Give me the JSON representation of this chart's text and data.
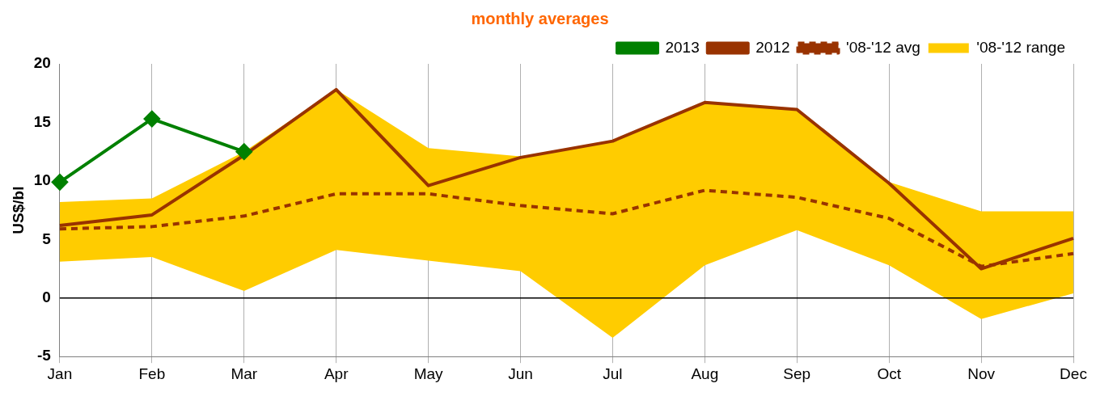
{
  "chart_data": {
    "type": "line",
    "title": "monthly averages",
    "ylabel": "US$/bl",
    "categories": [
      "Jan",
      "Feb",
      "Mar",
      "Apr",
      "May",
      "Jun",
      "Jul",
      "Aug",
      "Sep",
      "Oct",
      "Nov",
      "Dec"
    ],
    "series": [
      {
        "name": "2013",
        "type": "line",
        "color": "#008000",
        "marker": "diamond",
        "line_style": "solid",
        "values": [
          9.9,
          15.3,
          12.5,
          null,
          null,
          null,
          null,
          null,
          null,
          null,
          null,
          null
        ]
      },
      {
        "name": "2012",
        "type": "line",
        "color": "#993300",
        "marker": "none",
        "line_style": "solid",
        "values": [
          6.2,
          7.1,
          12.2,
          17.8,
          9.6,
          12.0,
          13.4,
          16.7,
          16.1,
          9.8,
          2.5,
          5.1
        ]
      },
      {
        "name": "'08-'12 avg",
        "type": "line",
        "color": "#993300",
        "marker": "none",
        "line_style": "dashed",
        "values": [
          5.9,
          6.1,
          7.0,
          8.9,
          8.9,
          7.9,
          7.2,
          9.2,
          8.6,
          6.8,
          2.7,
          3.8
        ]
      },
      {
        "name": "'08-'12 range",
        "type": "area",
        "color": "#ffcc00",
        "values": [
          null,
          null,
          null,
          null,
          null,
          null,
          null,
          null,
          null,
          null,
          null,
          null
        ],
        "upper": [
          8.2,
          8.5,
          12.5,
          17.8,
          12.8,
          12.1,
          13.4,
          16.7,
          16.1,
          9.9,
          7.4,
          7.4
        ],
        "lower": [
          3.1,
          3.5,
          0.6,
          4.1,
          3.2,
          2.3,
          -3.4,
          2.8,
          5.8,
          2.8,
          -1.8,
          0.4
        ]
      }
    ],
    "ylim": [
      -5,
      20
    ],
    "yticks": [
      -5,
      0,
      5,
      10,
      15,
      20
    ],
    "grid": "x",
    "legend": "top right",
    "ref_lines": [
      {
        "axis": "y",
        "value": 0,
        "color": "#000000"
      }
    ]
  }
}
